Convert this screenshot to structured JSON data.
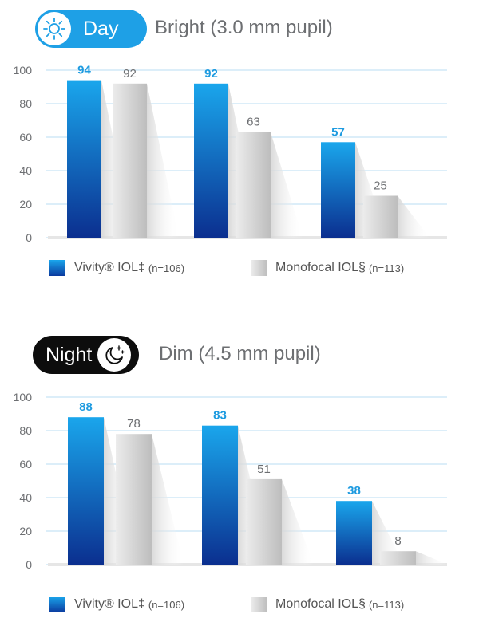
{
  "panels": [
    {
      "badge": "Day",
      "badge_icon": "sun-icon",
      "title": "Bright (3.0 mm pupil)"
    },
    {
      "badge": "Night",
      "badge_icon": "moon-stars-icon",
      "title": "Dim (4.5 mm pupil)"
    }
  ],
  "legend": {
    "vivity_label": "Vivity® IOL‡",
    "vivity_n": "(n=106)",
    "mono_label": "Monofocal IOL§",
    "mono_n": "(n=113)"
  },
  "colors": {
    "vivity_top": "#1aa6ec",
    "vivity_bottom": "#0b2f8f",
    "mono": "#bdbdbd",
    "value_blue": "#1e9be0",
    "value_gray": "#6d6f72",
    "grid": "#b9dcf3",
    "day_badge": "#1ea0e6",
    "night_badge": "#0d0d0d"
  },
  "chart_data": [
    {
      "type": "bar",
      "categories": [
        "",
        "",
        ""
      ],
      "series": [
        {
          "name": "Vivity® IOL‡",
          "values": [
            94,
            92,
            57
          ]
        },
        {
          "name": "Monofocal IOL§",
          "values": [
            92,
            63,
            25
          ]
        }
      ],
      "yticks": [
        "100",
        "80",
        "60",
        "40",
        "20",
        "0"
      ],
      "ylim": [
        0,
        100
      ],
      "grid": true,
      "legend_position": "bottom"
    },
    {
      "type": "bar",
      "categories": [
        "",
        "",
        ""
      ],
      "series": [
        {
          "name": "Vivity® IOL‡",
          "values": [
            88,
            83,
            38
          ]
        },
        {
          "name": "Monofocal IOL§",
          "values": [
            78,
            51,
            8
          ]
        }
      ],
      "yticks": [
        "100",
        "80",
        "60",
        "40",
        "20",
        "0"
      ],
      "ylim": [
        0,
        100
      ],
      "grid": true,
      "legend_position": "bottom"
    }
  ]
}
